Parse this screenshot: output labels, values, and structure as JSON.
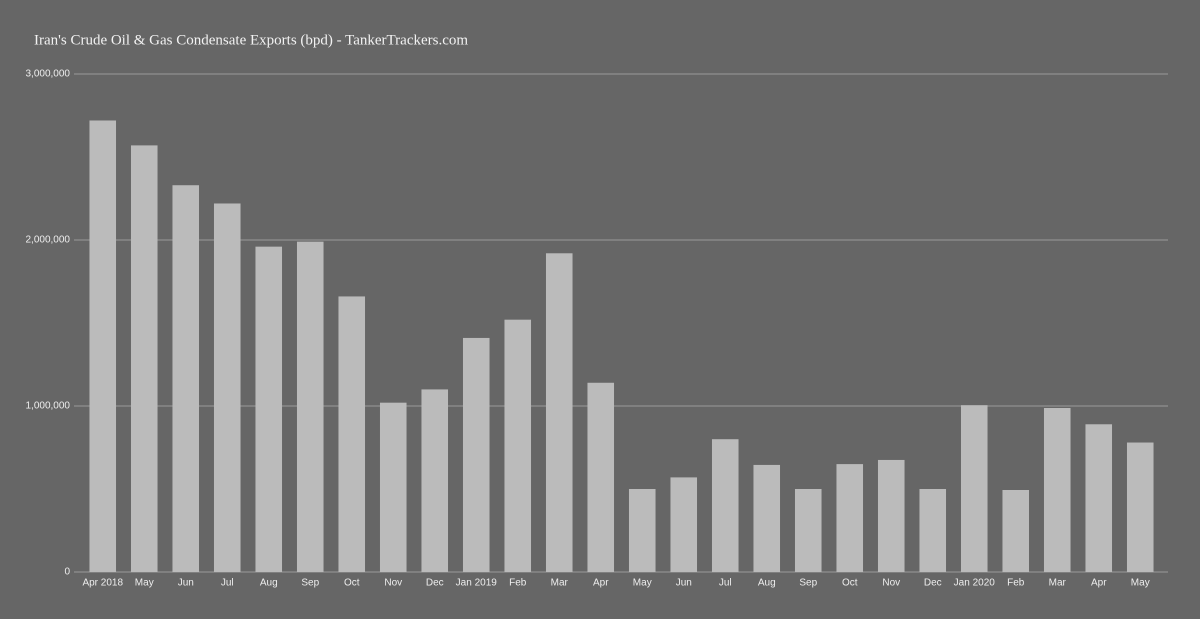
{
  "chart_data": {
    "type": "bar",
    "title": "Iran's Crude Oil & Gas Condensate Exports (bpd) - TankerTrackers.com",
    "categories": [
      "Apr 2018",
      "May",
      "Jun",
      "Jul",
      "Aug",
      "Sep",
      "Oct",
      "Nov",
      "Dec",
      "Jan 2019",
      "Feb",
      "Mar",
      "Apr",
      "May",
      "Jun",
      "Jul",
      "Aug",
      "Sep",
      "Oct",
      "Nov",
      "Dec",
      "Jan 2020",
      "Feb",
      "Mar",
      "Apr",
      "May"
    ],
    "values": [
      2720000,
      2570000,
      2330000,
      2220000,
      1960000,
      1990000,
      1660000,
      1020000,
      1100000,
      1410000,
      1520000,
      1920000,
      1140000,
      500000,
      570000,
      800000,
      645000,
      500000,
      650000,
      675000,
      500000,
      1005000,
      494000,
      988000,
      890000,
      780000
    ],
    "color": "#bbbbbb",
    "ylim": [
      0,
      3000000
    ],
    "yticks": [
      0,
      {
        "value": 1000000,
        "label": "1,000,000"
      },
      {
        "value": 2000000,
        "label": "2,000,000"
      },
      {
        "value": 3000000,
        "label": "3,000,000"
      }
    ],
    "grid": true
  }
}
